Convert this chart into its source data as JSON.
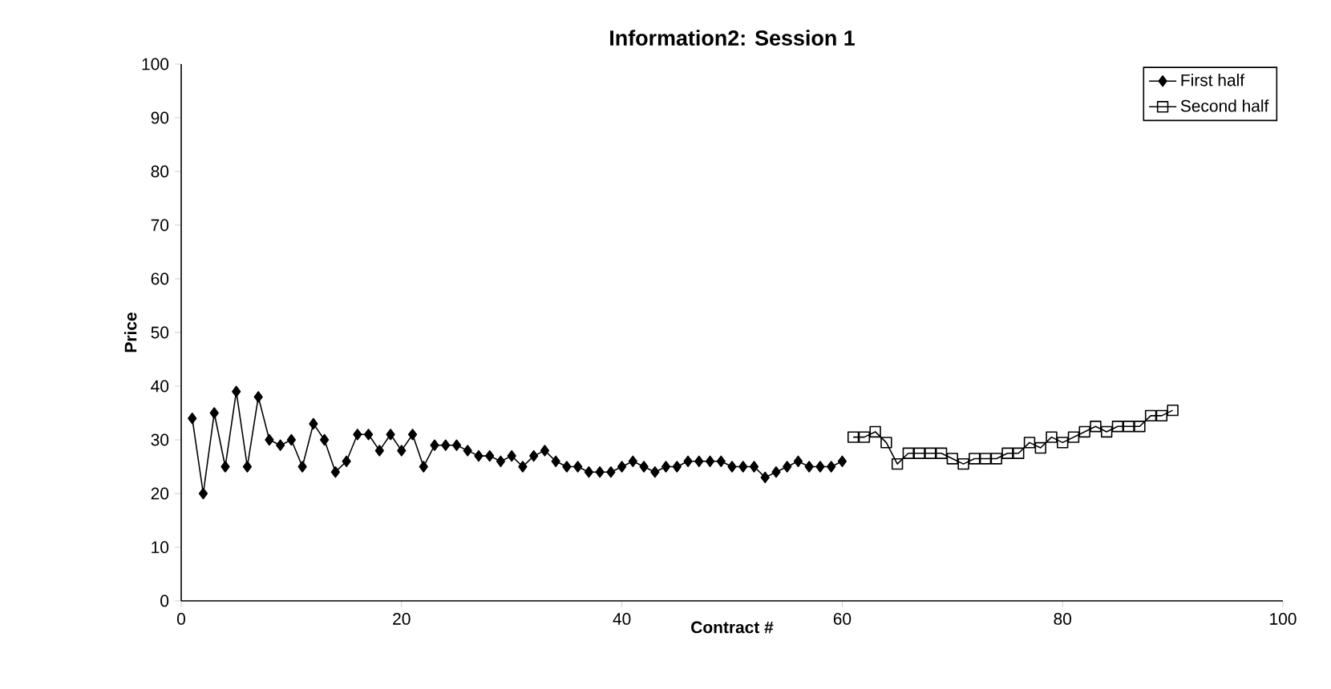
{
  "chart_data": {
    "type": "line",
    "title": "Information2: Session 1",
    "xlabel": "Contract #",
    "ylabel": "Price",
    "xlim": [
      0,
      100
    ],
    "xticks": [
      0,
      20,
      40,
      60,
      80,
      100
    ],
    "ylim": [
      0,
      100
    ],
    "yticks": [
      0,
      10,
      20,
      30,
      40,
      50,
      60,
      70,
      80,
      90,
      100
    ],
    "grid": false,
    "legend": "top right",
    "line_style": "solid",
    "series": [
      {
        "name": "First half",
        "color": "#000000",
        "marker": "diamond",
        "x": [
          1,
          2,
          3,
          4,
          5,
          6,
          7,
          8,
          9,
          10,
          11,
          12,
          13,
          14,
          15,
          16,
          17,
          18,
          19,
          20,
          21,
          22,
          23,
          24,
          25,
          26,
          27,
          28,
          29,
          30,
          31,
          32,
          33,
          34,
          35,
          36,
          37,
          38,
          39,
          40,
          41,
          42,
          43,
          44,
          45,
          46,
          47,
          48,
          49,
          50,
          51,
          52,
          53,
          54,
          55,
          56,
          57,
          58,
          59,
          60
        ],
        "values": [
          34,
          20,
          35,
          25,
          39,
          25,
          38,
          30,
          29,
          30,
          25,
          33,
          30,
          24,
          26,
          31,
          31,
          28,
          31,
          28,
          31,
          25,
          29,
          29,
          29,
          28,
          27,
          27,
          26,
          27,
          25,
          27,
          28,
          26,
          25,
          25,
          24,
          24,
          24,
          25,
          26,
          25,
          24,
          25,
          25,
          26,
          26,
          26,
          26,
          25,
          25,
          25,
          23,
          24,
          25,
          26,
          25,
          25,
          25,
          26
        ]
      },
      {
        "name": "Second half",
        "color": "#000000",
        "marker": "square",
        "x": [
          61,
          62,
          63,
          64,
          65,
          66,
          67,
          68,
          69,
          70,
          71,
          72,
          73,
          74,
          75,
          76,
          77,
          78,
          79,
          80,
          81,
          82,
          83,
          84,
          85,
          86,
          87,
          88,
          89,
          90
        ],
        "values": [
          30.5,
          30.5,
          31.5,
          29.5,
          25.5,
          27.5,
          27.5,
          27.5,
          27.5,
          26.5,
          25.5,
          26.5,
          26.5,
          26.5,
          27.5,
          27.5,
          29.5,
          28.5,
          30.5,
          29.5,
          30.5,
          31.5,
          32.5,
          31.5,
          32.5,
          32.5,
          32.5,
          34.5,
          34.5,
          35.5
        ]
      }
    ]
  }
}
